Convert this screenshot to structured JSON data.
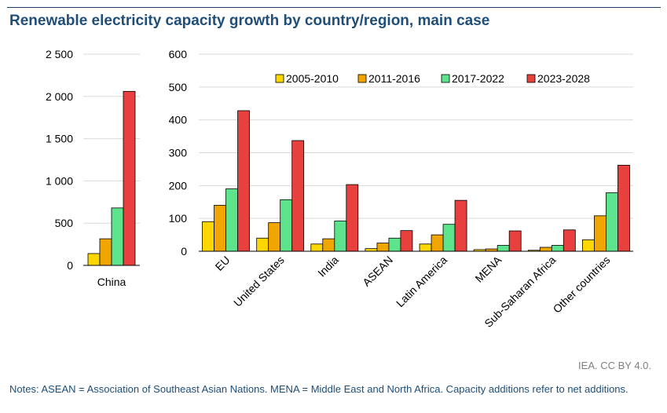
{
  "title": "Renewable electricity capacity growth by country/region, main case",
  "credit": "IEA. CC BY 4.0.",
  "notes": "Notes: ASEAN = Association of Southeast Asian Nations. MENA = Middle East and North Africa. Capacity additions refer to net additions.",
  "colors": {
    "2005-2010": "#ffd700",
    "2011-2016": "#f0a500",
    "2017-2022": "#5ce38c",
    "2023-2028": "#e8403c",
    "grid": "#d9d9d9",
    "text": "#000000"
  },
  "chart_data": [
    {
      "type": "bar",
      "categories": [
        "China"
      ],
      "series": [
        {
          "name": "2005-2010",
          "values": [
            140
          ]
        },
        {
          "name": "2011-2016",
          "values": [
            315
          ]
        },
        {
          "name": "2017-2022",
          "values": [
            680
          ]
        },
        {
          "name": "2023-2028",
          "values": [
            2060
          ]
        }
      ],
      "yticks": [
        "0",
        "500",
        "1 000",
        "1 500",
        "2 000",
        "2 500"
      ],
      "ylim": [
        0,
        2500
      ],
      "grid": true
    },
    {
      "type": "bar",
      "categories": [
        "EU",
        "United States",
        "India",
        "ASEAN",
        "Latin America",
        "MENA",
        "Sub-Saharan Africa",
        "Other countries"
      ],
      "series": [
        {
          "name": "2005-2010",
          "values": [
            90,
            40,
            22,
            8,
            22,
            5,
            3,
            35
          ]
        },
        {
          "name": "2011-2016",
          "values": [
            140,
            87,
            38,
            25,
            50,
            7,
            12,
            108
          ]
        },
        {
          "name": "2017-2022",
          "values": [
            190,
            157,
            92,
            40,
            82,
            18,
            18,
            178
          ]
        },
        {
          "name": "2023-2028",
          "values": [
            428,
            337,
            203,
            63,
            155,
            62,
            65,
            262
          ]
        }
      ],
      "yticks": [
        "0",
        "100",
        "200",
        "300",
        "400",
        "500",
        "600"
      ],
      "ylim": [
        0,
        600
      ],
      "grid": true,
      "legend": "top-right"
    }
  ]
}
